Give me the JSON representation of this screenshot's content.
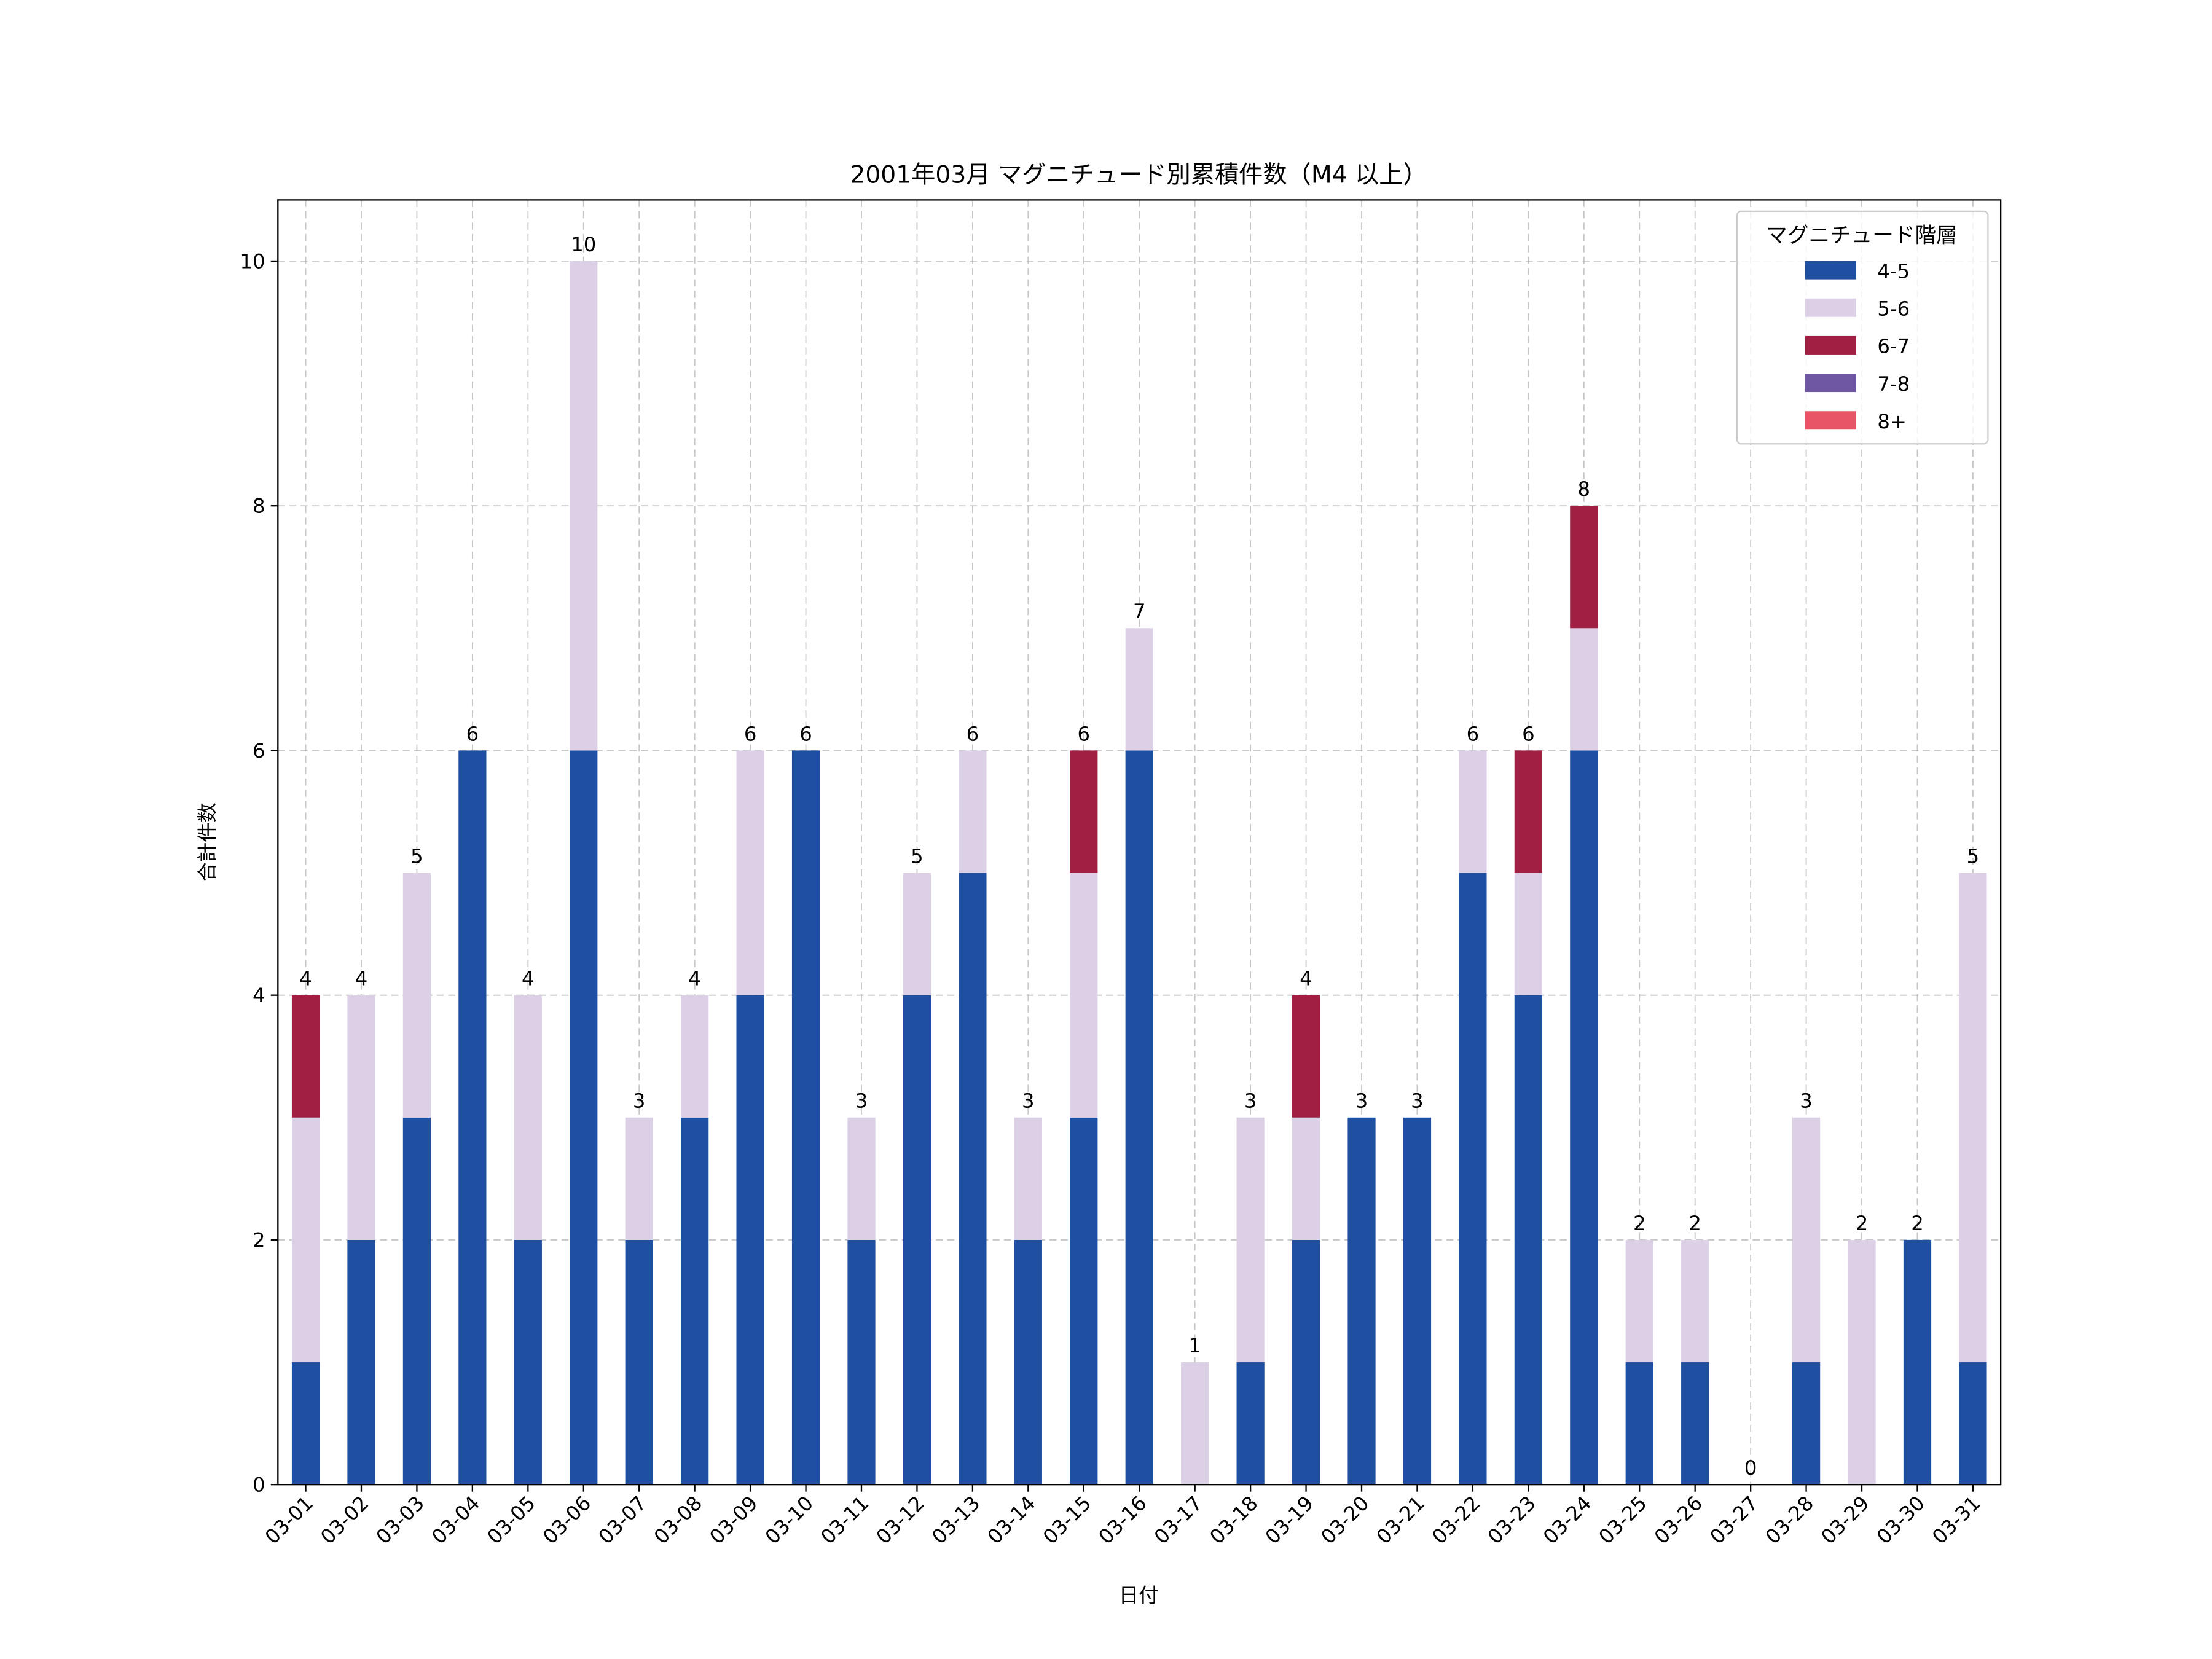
{
  "chart_data": {
    "type": "bar",
    "stacked": true,
    "title": "2001年03月 マグニチュード別累積件数（M4 以上）",
    "xlabel": "日付",
    "ylabel": "合計件数",
    "ylim": [
      0,
      10.5
    ],
    "yticks": [
      0,
      2,
      4,
      6,
      8,
      10
    ],
    "grid": true,
    "legend": {
      "title": "マグニチュード階層",
      "placement": "top-right"
    },
    "categories": [
      "03-01",
      "03-02",
      "03-03",
      "03-04",
      "03-05",
      "03-06",
      "03-07",
      "03-08",
      "03-09",
      "03-10",
      "03-11",
      "03-12",
      "03-13",
      "03-14",
      "03-15",
      "03-16",
      "03-17",
      "03-18",
      "03-19",
      "03-20",
      "03-21",
      "03-22",
      "03-23",
      "03-24",
      "03-25",
      "03-26",
      "03-27",
      "03-28",
      "03-29",
      "03-30",
      "03-31"
    ],
    "series": [
      {
        "name": "4-5",
        "color": "#1f4fa0",
        "values": [
          1,
          2,
          3,
          6,
          2,
          6,
          2,
          3,
          4,
          6,
          2,
          4,
          5,
          2,
          3,
          6,
          0,
          1,
          2,
          3,
          3,
          5,
          4,
          6,
          1,
          1,
          0,
          1,
          0,
          2,
          1
        ]
      },
      {
        "name": "5-6",
        "color": "#dcd0e6",
        "values": [
          2,
          2,
          2,
          0,
          2,
          4,
          1,
          1,
          2,
          0,
          1,
          1,
          1,
          1,
          2,
          1,
          1,
          2,
          1,
          0,
          0,
          1,
          1,
          1,
          1,
          1,
          0,
          2,
          2,
          0,
          4
        ]
      },
      {
        "name": "6-7",
        "color": "#a01f42",
        "values": [
          1,
          0,
          0,
          0,
          0,
          0,
          0,
          0,
          0,
          0,
          0,
          0,
          0,
          0,
          1,
          0,
          0,
          0,
          1,
          0,
          0,
          0,
          1,
          1,
          0,
          0,
          0,
          0,
          0,
          0,
          0
        ]
      },
      {
        "name": "7-8",
        "color": "#7057a3",
        "values": [
          0,
          0,
          0,
          0,
          0,
          0,
          0,
          0,
          0,
          0,
          0,
          0,
          0,
          0,
          0,
          0,
          0,
          0,
          0,
          0,
          0,
          0,
          0,
          0,
          0,
          0,
          0,
          0,
          0,
          0,
          0
        ]
      },
      {
        "name": "8+",
        "color": "#e85567",
        "values": [
          0,
          0,
          0,
          0,
          0,
          0,
          0,
          0,
          0,
          0,
          0,
          0,
          0,
          0,
          0,
          0,
          0,
          0,
          0,
          0,
          0,
          0,
          0,
          0,
          0,
          0,
          0,
          0,
          0,
          0,
          0
        ]
      }
    ],
    "totals": [
      4,
      4,
      5,
      6,
      4,
      10,
      3,
      4,
      6,
      6,
      3,
      5,
      6,
      3,
      6,
      7,
      1,
      3,
      4,
      3,
      3,
      6,
      6,
      8,
      2,
      2,
      0,
      3,
      2,
      2,
      5
    ]
  }
}
